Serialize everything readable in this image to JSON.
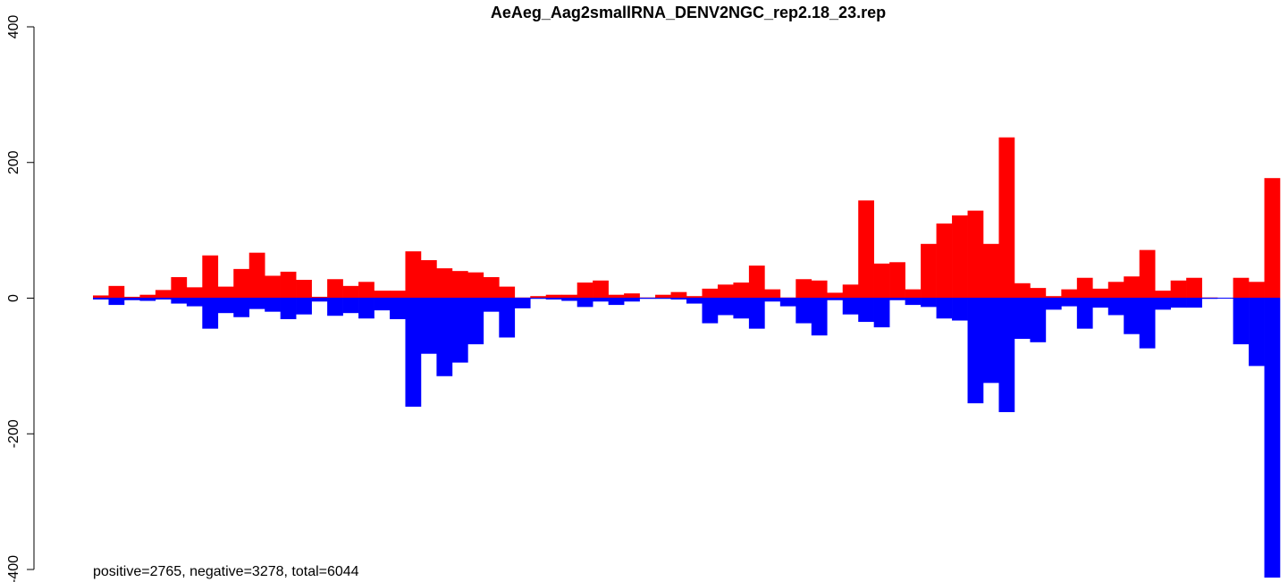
{
  "chart_data": {
    "type": "bar",
    "title": "AeAeg_Aag2smallRNA_DENV2NGC_rep2.18_23.rep",
    "annotation": "positive=2765, negative=3278, total=6044",
    "ylim": [
      -400,
      400
    ],
    "yticks": [
      -400,
      -200,
      0,
      200,
      400
    ],
    "series": [
      {
        "color": "#ff0000",
        "values": [
          4,
          18,
          2,
          5,
          12,
          31,
          16,
          63,
          17,
          43,
          67,
          33,
          39,
          27,
          2,
          28,
          18,
          24,
          11,
          11,
          69,
          56,
          44,
          40,
          38,
          31,
          17,
          1,
          3,
          5,
          5,
          23,
          26,
          5,
          7,
          1,
          5,
          9,
          3,
          14,
          20,
          23,
          48,
          13,
          1,
          28,
          26,
          8,
          20,
          144,
          51,
          53,
          13,
          80,
          110,
          122,
          129,
          80,
          237,
          22,
          15,
          3,
          13,
          30,
          14,
          24,
          32,
          71,
          11,
          26,
          30,
          1,
          0,
          30,
          24,
          177
        ]
      },
      {
        "color": "#0000ff",
        "values": [
          -2,
          -10,
          -3,
          -4,
          -2,
          -8,
          -12,
          -45,
          -22,
          -28,
          -16,
          -20,
          -31,
          -24,
          -5,
          -26,
          -22,
          -30,
          -18,
          -31,
          -160,
          -82,
          -115,
          -95,
          -68,
          -20,
          -58,
          -15,
          -1,
          -2,
          -4,
          -13,
          -5,
          -10,
          -5,
          -1,
          -1,
          -2,
          -8,
          -37,
          -25,
          -30,
          -45,
          -5,
          -12,
          -37,
          -55,
          -3,
          -24,
          -35,
          -43,
          -3,
          -10,
          -13,
          -30,
          -33,
          -155,
          -125,
          -168,
          -60,
          -65,
          -17,
          -12,
          -45,
          -14,
          -25,
          -53,
          -74,
          -17,
          -14,
          -14,
          -1,
          0,
          -68,
          -100,
          -412
        ]
      }
    ]
  }
}
